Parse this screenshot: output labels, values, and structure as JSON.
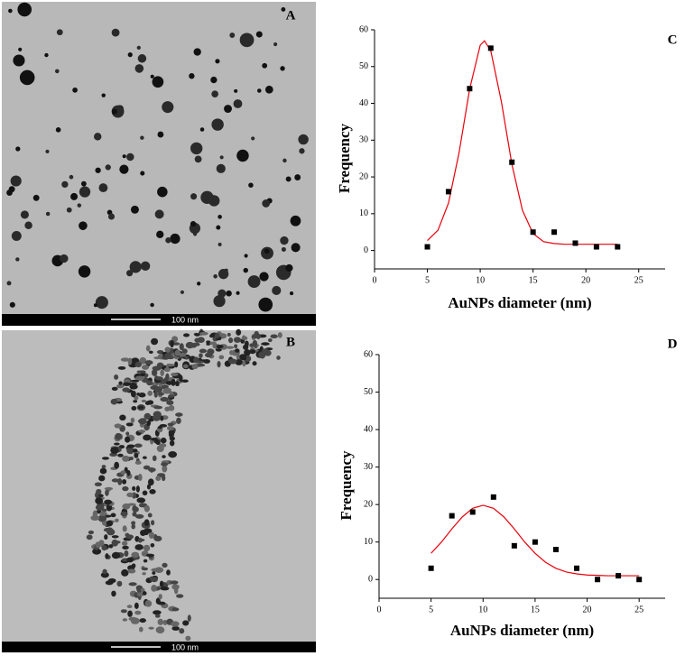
{
  "panels": [
    {
      "label": "A",
      "scale_bar": "100 nm"
    },
    {
      "label": "B",
      "scale_bar": "100 nm"
    }
  ],
  "chart_data": [
    {
      "type": "scatter",
      "title": "C",
      "x_label": "AuNPs diameter (nm)",
      "y_label": "Frequency",
      "x": [
        5,
        7,
        9,
        11,
        13,
        15,
        17,
        19,
        21,
        23
      ],
      "values": [
        1,
        16,
        44,
        55,
        24,
        5,
        5,
        2,
        1,
        1
      ],
      "color": "#000000",
      "fit": {
        "color": "#e8000b",
        "x": [
          5,
          6,
          7,
          8,
          9,
          10,
          10.4,
          11,
          12,
          13,
          14,
          15,
          16,
          17,
          18,
          19,
          20,
          21,
          22,
          23
        ],
        "values": [
          2.7,
          5.5,
          12.9,
          26.6,
          43.9,
          55.8,
          57,
          54.3,
          40.5,
          23.4,
          10.9,
          4.6,
          2.4,
          1.9,
          1.7,
          1.7,
          1.7,
          1.7,
          1.7,
          1.7
        ]
      },
      "xlim": [
        0,
        27.5
      ],
      "ylim": [
        -5,
        60
      ],
      "xticks": [
        0,
        5,
        10,
        15,
        20,
        25
      ],
      "yticks": [
        0,
        10,
        20,
        30,
        40,
        50,
        60
      ]
    },
    {
      "type": "scatter",
      "title": "D",
      "x_label": "AuNPs diameter (nm)",
      "y_label": "Frequency",
      "x": [
        5,
        7,
        9,
        11,
        13,
        15,
        17,
        19,
        21,
        23,
        25
      ],
      "values": [
        3,
        17,
        18,
        22,
        9,
        10,
        8,
        3,
        0,
        1,
        0
      ],
      "color": "#000000",
      "fit": {
        "color": "#e8000b",
        "x": [
          5,
          6,
          7,
          8,
          9,
          10,
          11,
          12,
          13,
          14,
          15,
          16,
          17,
          18,
          19,
          20,
          21,
          22,
          23,
          24,
          25
        ],
        "values": [
          7.0,
          10.0,
          13.5,
          16.7,
          19.0,
          19.8,
          19.0,
          16.7,
          13.5,
          10.0,
          7.0,
          4.6,
          3.0,
          2.0,
          1.5,
          1.2,
          1.1,
          1.0,
          1.0,
          1.0,
          1.0
        ]
      },
      "xlim": [
        0,
        27.5
      ],
      "ylim": [
        -5,
        60
      ],
      "xticks": [
        0,
        5,
        10,
        15,
        20,
        25
      ],
      "yticks": [
        0,
        10,
        20,
        30,
        40,
        50,
        60
      ]
    }
  ]
}
